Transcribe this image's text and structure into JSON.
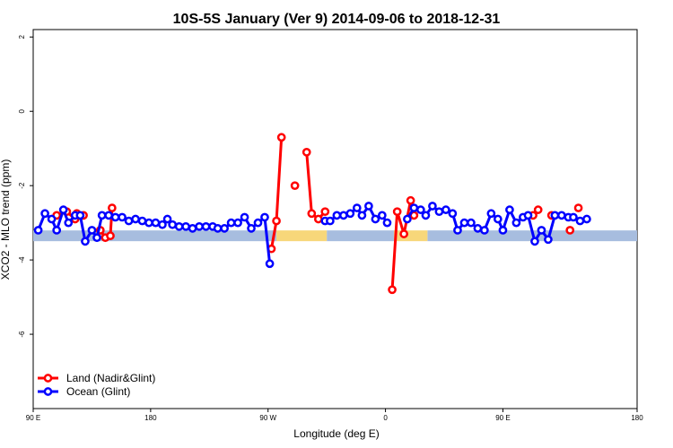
{
  "chart_data": {
    "type": "line",
    "title": "10S-5S January (Ver 9)   2014-09-06 to 2018-12-31",
    "xlabel": "Longitude (deg E)",
    "ylabel": "XCO2 - MLO trend (ppm)",
    "xlim": [
      90,
      450
    ],
    "ylim": [
      -8,
      2.2
    ],
    "x_ticks": [
      {
        "value": 90,
        "label": "90 E"
      },
      {
        "value": 160,
        "label": "180"
      },
      {
        "value": 230,
        "label": "90 W"
      },
      {
        "value": 300,
        "label": "0"
      },
      {
        "value": 370,
        "label": "90 E"
      },
      {
        "value": 450,
        "label": "180"
      }
    ],
    "y_ticks": [
      {
        "value": 2,
        "label": "2"
      },
      {
        "value": 0,
        "label": "0"
      },
      {
        "value": -2,
        "label": "-2"
      },
      {
        "value": -4,
        "label": "-4"
      },
      {
        "value": -6,
        "label": "-6"
      }
    ],
    "grid": false,
    "legend_position": "bottom-left",
    "colors": {
      "land": "#ff0000",
      "ocean": "#0000ff",
      "ocean_band": "#a7bddf",
      "land_band": "#f7d77a"
    },
    "series": [
      {
        "name": "Land (Nadir&Glint)",
        "color": "#ff0000",
        "segments": [
          [
            [
              104,
              -2.8
            ],
            [
              110,
              -2.7
            ],
            [
              115,
              -2.9
            ]
          ],
          [
            [
              116,
              -2.75
            ],
            [
              120,
              -2.8
            ]
          ],
          [
            [
              130,
              -3.2
            ],
            [
              133,
              -3.4
            ],
            [
              136,
              -3.35
            ],
            [
              137,
              -2.6
            ]
          ],
          [
            [
              232,
              -3.7
            ],
            [
              235,
              -2.95
            ],
            [
              238,
              -0.7
            ]
          ],
          [
            [
              246,
              -2.0
            ]
          ],
          [
            [
              253,
              -1.1
            ],
            [
              256,
              -2.75
            ],
            [
              260,
              -2.9
            ],
            [
              264,
              -2.7
            ]
          ],
          [
            [
              304,
              -4.8
            ],
            [
              307,
              -2.7
            ],
            [
              311,
              -3.3
            ],
            [
              315,
              -2.4
            ],
            [
              317,
              -2.8
            ]
          ],
          [
            [
              388,
              -2.8
            ],
            [
              391,
              -2.65
            ]
          ],
          [
            [
              399,
              -2.8
            ]
          ],
          [
            [
              410,
              -3.2
            ]
          ],
          [
            [
              415,
              -2.6
            ]
          ]
        ]
      },
      {
        "name": "Ocean (Glint)",
        "color": "#0000ff",
        "segments": [
          [
            [
              93,
              -3.2
            ],
            [
              97,
              -2.75
            ],
            [
              101,
              -2.9
            ],
            [
              104,
              -3.2
            ],
            [
              108,
              -2.65
            ],
            [
              111,
              -3.0
            ],
            [
              115,
              -2.8
            ],
            [
              118,
              -2.8
            ],
            [
              121,
              -3.5
            ],
            [
              125,
              -3.2
            ],
            [
              128,
              -3.4
            ],
            [
              131,
              -2.8
            ],
            [
              135,
              -2.8
            ],
            [
              139,
              -2.85
            ],
            [
              143,
              -2.85
            ],
            [
              147,
              -2.95
            ],
            [
              151,
              -2.9
            ],
            [
              155,
              -2.95
            ],
            [
              159,
              -3.0
            ],
            [
              163,
              -3.0
            ],
            [
              167,
              -3.05
            ],
            [
              170,
              -2.9
            ],
            [
              173,
              -3.05
            ],
            [
              177,
              -3.1
            ],
            [
              181,
              -3.1
            ],
            [
              185,
              -3.15
            ],
            [
              189,
              -3.1
            ],
            [
              193,
              -3.1
            ],
            [
              197,
              -3.1
            ],
            [
              200,
              -3.15
            ],
            [
              204,
              -3.15
            ],
            [
              208,
              -3.0
            ],
            [
              212,
              -3.0
            ],
            [
              216,
              -2.85
            ],
            [
              220,
              -3.15
            ],
            [
              224,
              -3.0
            ],
            [
              228,
              -2.85
            ],
            [
              231,
              -4.1
            ]
          ],
          [
            [
              264,
              -2.95
            ],
            [
              267,
              -2.95
            ],
            [
              271,
              -2.8
            ],
            [
              275,
              -2.8
            ],
            [
              279,
              -2.75
            ],
            [
              283,
              -2.6
            ],
            [
              286,
              -2.8
            ],
            [
              290,
              -2.55
            ],
            [
              294,
              -2.9
            ],
            [
              298,
              -2.8
            ],
            [
              301,
              -3.0
            ]
          ],
          [
            [
              313,
              -2.9
            ],
            [
              317,
              -2.6
            ],
            [
              321,
              -2.65
            ],
            [
              324,
              -2.8
            ],
            [
              328,
              -2.55
            ],
            [
              332,
              -2.7
            ],
            [
              336,
              -2.65
            ],
            [
              340,
              -2.75
            ],
            [
              343,
              -3.2
            ],
            [
              347,
              -3.0
            ],
            [
              351,
              -3.0
            ],
            [
              355,
              -3.15
            ],
            [
              359,
              -3.2
            ],
            [
              363,
              -2.75
            ],
            [
              367,
              -2.9
            ],
            [
              370,
              -3.2
            ],
            [
              374,
              -2.65
            ],
            [
              378,
              -3.0
            ],
            [
              382,
              -2.85
            ],
            [
              385,
              -2.8
            ],
            [
              389,
              -3.5
            ],
            [
              393,
              -3.2
            ],
            [
              397,
              -3.45
            ],
            [
              401,
              -2.8
            ],
            [
              405,
              -2.8
            ],
            [
              409,
              -2.85
            ],
            [
              412,
              -2.85
            ],
            [
              416,
              -2.95
            ],
            [
              420,
              -2.9
            ]
          ]
        ]
      }
    ],
    "band": {
      "y": -3.35,
      "ocean_ranges": [
        [
          90,
          235
        ],
        [
          265,
          305
        ],
        [
          325,
          450
        ]
      ],
      "land_ranges": [
        [
          235,
          265
        ],
        [
          305,
          325
        ]
      ]
    }
  }
}
